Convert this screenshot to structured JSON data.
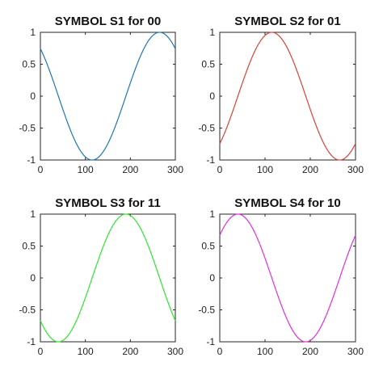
{
  "chart_data": [
    {
      "type": "line",
      "title": "SYMBOL S1 for 00",
      "xlabel": "",
      "ylabel": "",
      "xlim": [
        0,
        300
      ],
      "ylim": [
        -1,
        1
      ],
      "xticks": [
        0,
        100,
        200,
        300
      ],
      "xtick_labels": [
        "0",
        "100",
        "200",
        "300"
      ],
      "yticks": [
        1,
        0.5,
        0,
        -0.5,
        -1
      ],
      "ytick_labels": [
        "1",
        "0.5",
        "0",
        "-0.5",
        "-1"
      ],
      "grid": false,
      "series": [
        {
          "color": "#1f77b4",
          "x_start": 0,
          "x_end": 300,
          "period": 300,
          "peak_x": 265,
          "amplitude": 1
        }
      ]
    },
    {
      "type": "line",
      "title": "SYMBOL S2 for 01",
      "xlabel": "",
      "ylabel": "",
      "xlim": [
        0,
        300
      ],
      "ylim": [
        -1,
        1
      ],
      "xticks": [
        0,
        100,
        200,
        300
      ],
      "xtick_labels": [
        "0",
        "100",
        "200",
        "300"
      ],
      "yticks": [
        1,
        0.5,
        0,
        -0.5,
        -1
      ],
      "ytick_labels": [
        "1",
        "0.5",
        "0",
        "-0.5",
        "-1"
      ],
      "grid": false,
      "series": [
        {
          "color": "#d9423b",
          "x_start": 0,
          "x_end": 300,
          "period": 300,
          "peak_x": 115,
          "amplitude": 1
        }
      ]
    },
    {
      "type": "line",
      "title": "SYMBOL S3 for 11",
      "xlabel": "",
      "ylabel": "",
      "xlim": [
        0,
        300
      ],
      "ylim": [
        -1,
        1
      ],
      "xticks": [
        0,
        100,
        200,
        300
      ],
      "xtick_labels": [
        "0",
        "100",
        "200",
        "300"
      ],
      "yticks": [
        1,
        0.5,
        0,
        -0.5,
        -1
      ],
      "ytick_labels": [
        "1",
        "0.5",
        "0",
        "-0.5",
        "-1"
      ],
      "grid": false,
      "series": [
        {
          "color": "#2ee62e",
          "x_start": 0,
          "x_end": 300,
          "period": 300,
          "peak_x": 190,
          "amplitude": 1
        }
      ]
    },
    {
      "type": "line",
      "title": "SYMBOL S4 for 10",
      "xlabel": "",
      "ylabel": "",
      "xlim": [
        0,
        300
      ],
      "ylim": [
        -1,
        1
      ],
      "xticks": [
        0,
        100,
        200,
        300
      ],
      "xtick_labels": [
        "0",
        "100",
        "200",
        "300"
      ],
      "yticks": [
        1,
        0.5,
        0,
        -0.5,
        -1
      ],
      "ytick_labels": [
        "1",
        "0.5",
        "0",
        "-0.5",
        "-1"
      ],
      "grid": false,
      "series": [
        {
          "color": "#e22ee2",
          "x_start": 0,
          "x_end": 300,
          "period": 300,
          "peak_x": 40,
          "amplitude": 1
        }
      ]
    }
  ]
}
